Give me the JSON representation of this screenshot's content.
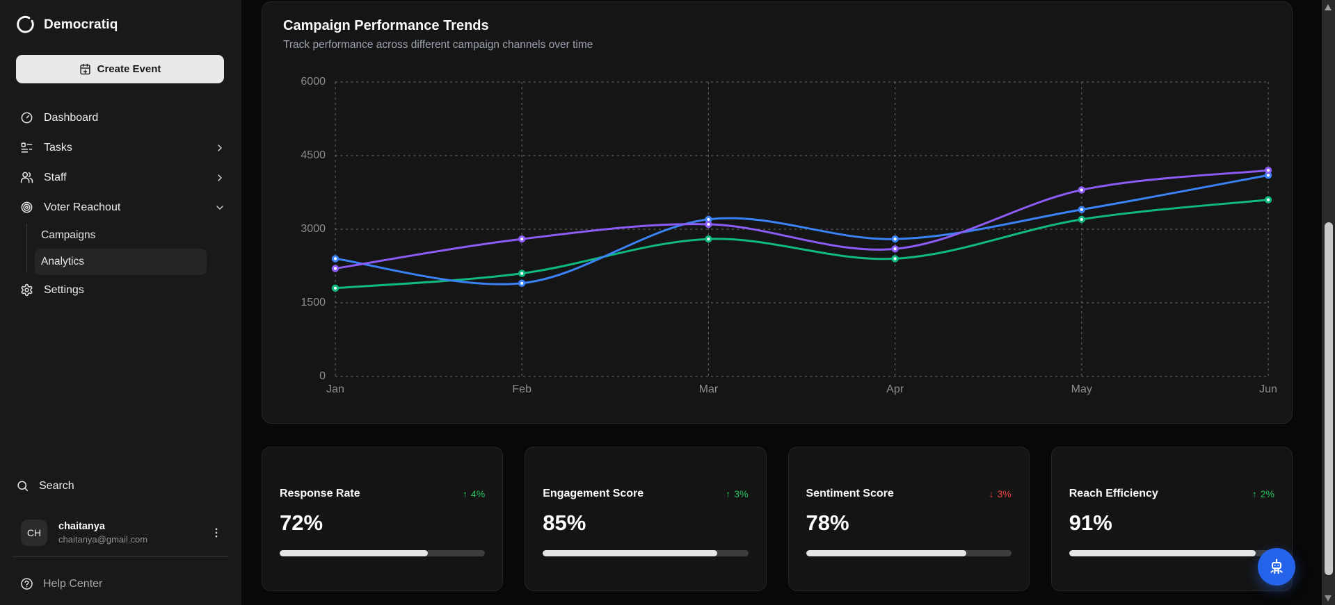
{
  "brand": {
    "name": "Democratiq"
  },
  "sidebar": {
    "create_event_label": "Create Event",
    "items": [
      {
        "label": "Dashboard",
        "icon": "gauge-icon",
        "chevron": "none"
      },
      {
        "label": "Tasks",
        "icon": "list-todo-icon",
        "chevron": "right"
      },
      {
        "label": "Staff",
        "icon": "users-icon",
        "chevron": "right"
      },
      {
        "label": "Voter Reachout",
        "icon": "target-icon",
        "chevron": "down"
      }
    ],
    "sub_items": [
      {
        "label": "Campaigns",
        "active": false
      },
      {
        "label": "Analytics",
        "active": true
      }
    ],
    "settings_label": "Settings",
    "search_label": "Search",
    "user": {
      "initials": "CH",
      "name": "chaitanya",
      "email": "chaitanya@gmail.com"
    },
    "help_label": "Help Center"
  },
  "chart_card": {
    "title": "Campaign Performance Trends",
    "subtitle": "Track performance across different campaign channels over time"
  },
  "chart_data": {
    "type": "line",
    "title": "Campaign Performance Trends",
    "categories": [
      "Jan",
      "Feb",
      "Mar",
      "Apr",
      "May",
      "Jun"
    ],
    "series": [
      {
        "name": "green-series",
        "color": "#10b981",
        "values": [
          1800,
          2100,
          2800,
          2400,
          3200,
          3600
        ]
      },
      {
        "name": "blue-series",
        "color": "#3b82f6",
        "values": [
          2400,
          1900,
          3200,
          2800,
          3400,
          4100
        ]
      },
      {
        "name": "purple-series",
        "color": "#8b5cf6",
        "values": [
          2200,
          2800,
          3100,
          2600,
          3800,
          4200
        ]
      }
    ],
    "ylim": [
      0,
      6000
    ],
    "yticks": [
      0,
      1500,
      3000,
      4500,
      6000
    ],
    "grid": "dashed",
    "legend": "none",
    "marker": "white-center-dot",
    "xlabel": "",
    "ylabel": ""
  },
  "metric_cards": [
    {
      "label": "Response Rate",
      "value": "72%",
      "delta": "4%",
      "direction": "up",
      "percent": 72
    },
    {
      "label": "Engagement Score",
      "value": "85%",
      "delta": "3%",
      "direction": "up",
      "percent": 85
    },
    {
      "label": "Sentiment Score",
      "value": "78%",
      "delta": "3%",
      "direction": "down",
      "percent": 78
    },
    {
      "label": "Reach Efficiency",
      "value": "91%",
      "delta": "2%",
      "direction": "up",
      "percent": 91
    }
  ],
  "colors": {
    "accent_blue": "#2563eb",
    "positive": "#22c55e",
    "negative": "#ef4444",
    "grid": "#9a9a9a",
    "card_bg": "#141414",
    "sidebar_bg": "#191919"
  }
}
